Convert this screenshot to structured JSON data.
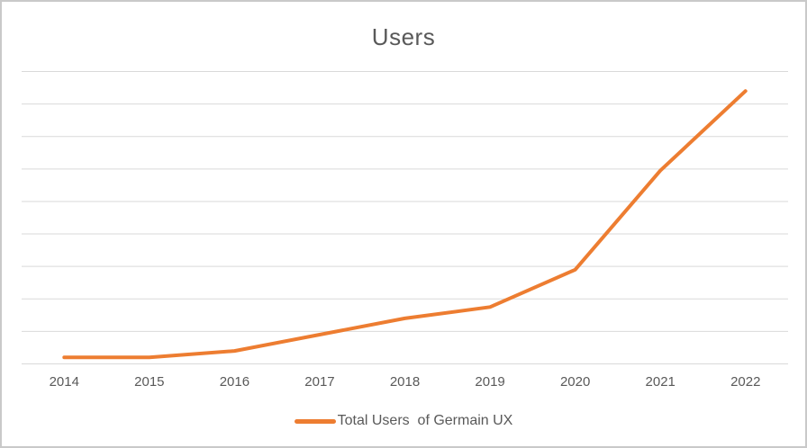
{
  "chart": {
    "title": "Users"
  },
  "chart_data": {
    "type": "line",
    "title": "Users",
    "categories": [
      "2014",
      "2015",
      "2016",
      "2017",
      "2018",
      "2019",
      "2020",
      "2021",
      "2022"
    ],
    "series": [
      {
        "name": "Total Users  of Germain UX",
        "values": [
          0.2,
          0.2,
          0.4,
          0.9,
          1.4,
          1.75,
          2.9,
          5.95,
          8.4
        ],
        "color": "#ED7D31"
      }
    ],
    "xlabel": "",
    "ylabel": "",
    "ylim": [
      0,
      9
    ],
    "gridline_step": 1,
    "grid": "horizontal-only",
    "y_axis_labels_visible": false,
    "legend_position": "bottom-center"
  },
  "colors": {
    "line": "#ED7D31",
    "gridline": "#D9D9D9",
    "axis_text": "#595959",
    "title_text": "#595959",
    "legend_text": "#595959",
    "frame_border": "#C9C9C9",
    "background": "#FFFFFF"
  }
}
